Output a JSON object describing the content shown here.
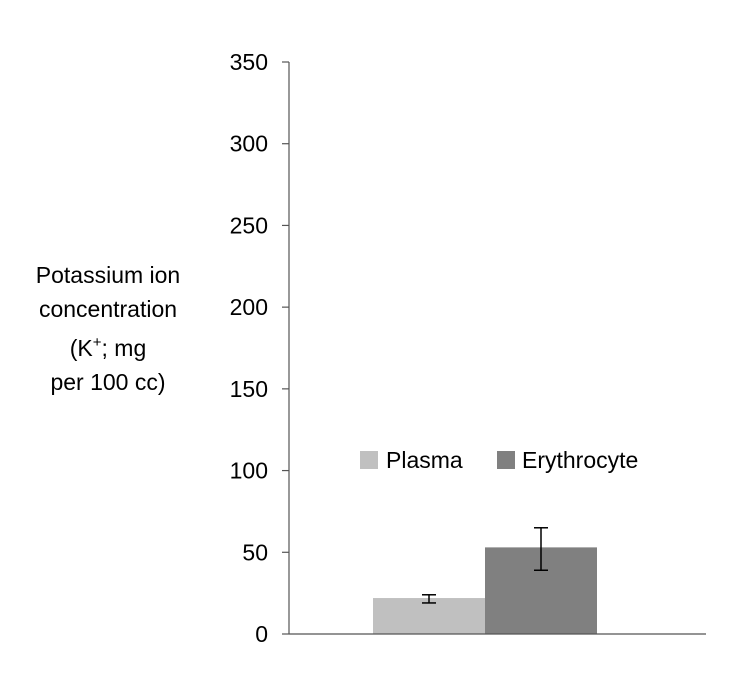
{
  "chart_data": {
    "type": "bar",
    "title": "",
    "ylabel": {
      "line1": "Potassium ion",
      "line2": "concentration",
      "line3_prefix": "(K",
      "line3_sup": "+",
      "line3_suffix": "; mg",
      "line4": "per 100 cc)"
    },
    "xlabel": "",
    "ylim": [
      0,
      350
    ],
    "yticks": [
      "0",
      "50",
      "100",
      "150",
      "200",
      "250",
      "300",
      "350"
    ],
    "ytick_values": [
      0,
      50,
      100,
      150,
      200,
      250,
      300,
      350
    ],
    "series": [
      {
        "name": "Plasma",
        "value": 22,
        "error_low": 19,
        "error_high": 24,
        "color": "#c0c0c0"
      },
      {
        "name": "Erythrocyte",
        "value": 53,
        "error_low": 39,
        "error_high": 65,
        "color": "#808080"
      }
    ],
    "legend_position": "center",
    "grid": false
  }
}
